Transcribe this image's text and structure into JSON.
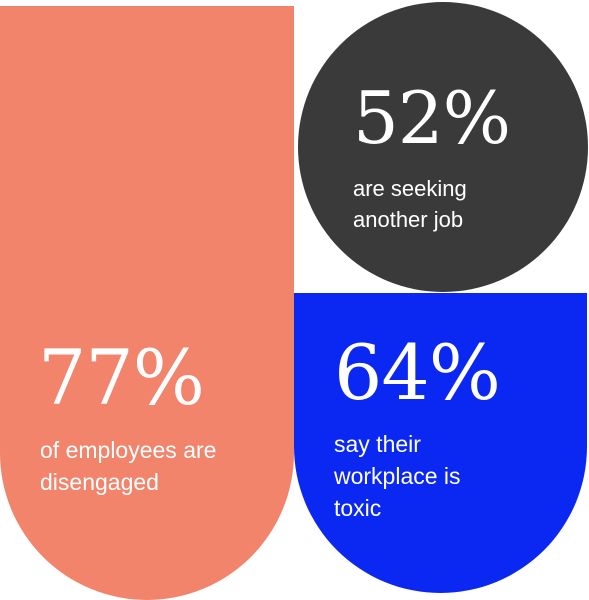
{
  "stats": [
    {
      "value": "77%",
      "line1": "of employees are",
      "line2": "disengaged",
      "line3": "",
      "color": "#f2846c"
    },
    {
      "value": "52%",
      "line1": "are seeking",
      "line2": "another job",
      "line3": "",
      "color": "#3a3a3a"
    },
    {
      "value": "64%",
      "line1": "say their",
      "line2": "workplace is",
      "line3": "toxic",
      "color": "#0a28f2"
    }
  ]
}
